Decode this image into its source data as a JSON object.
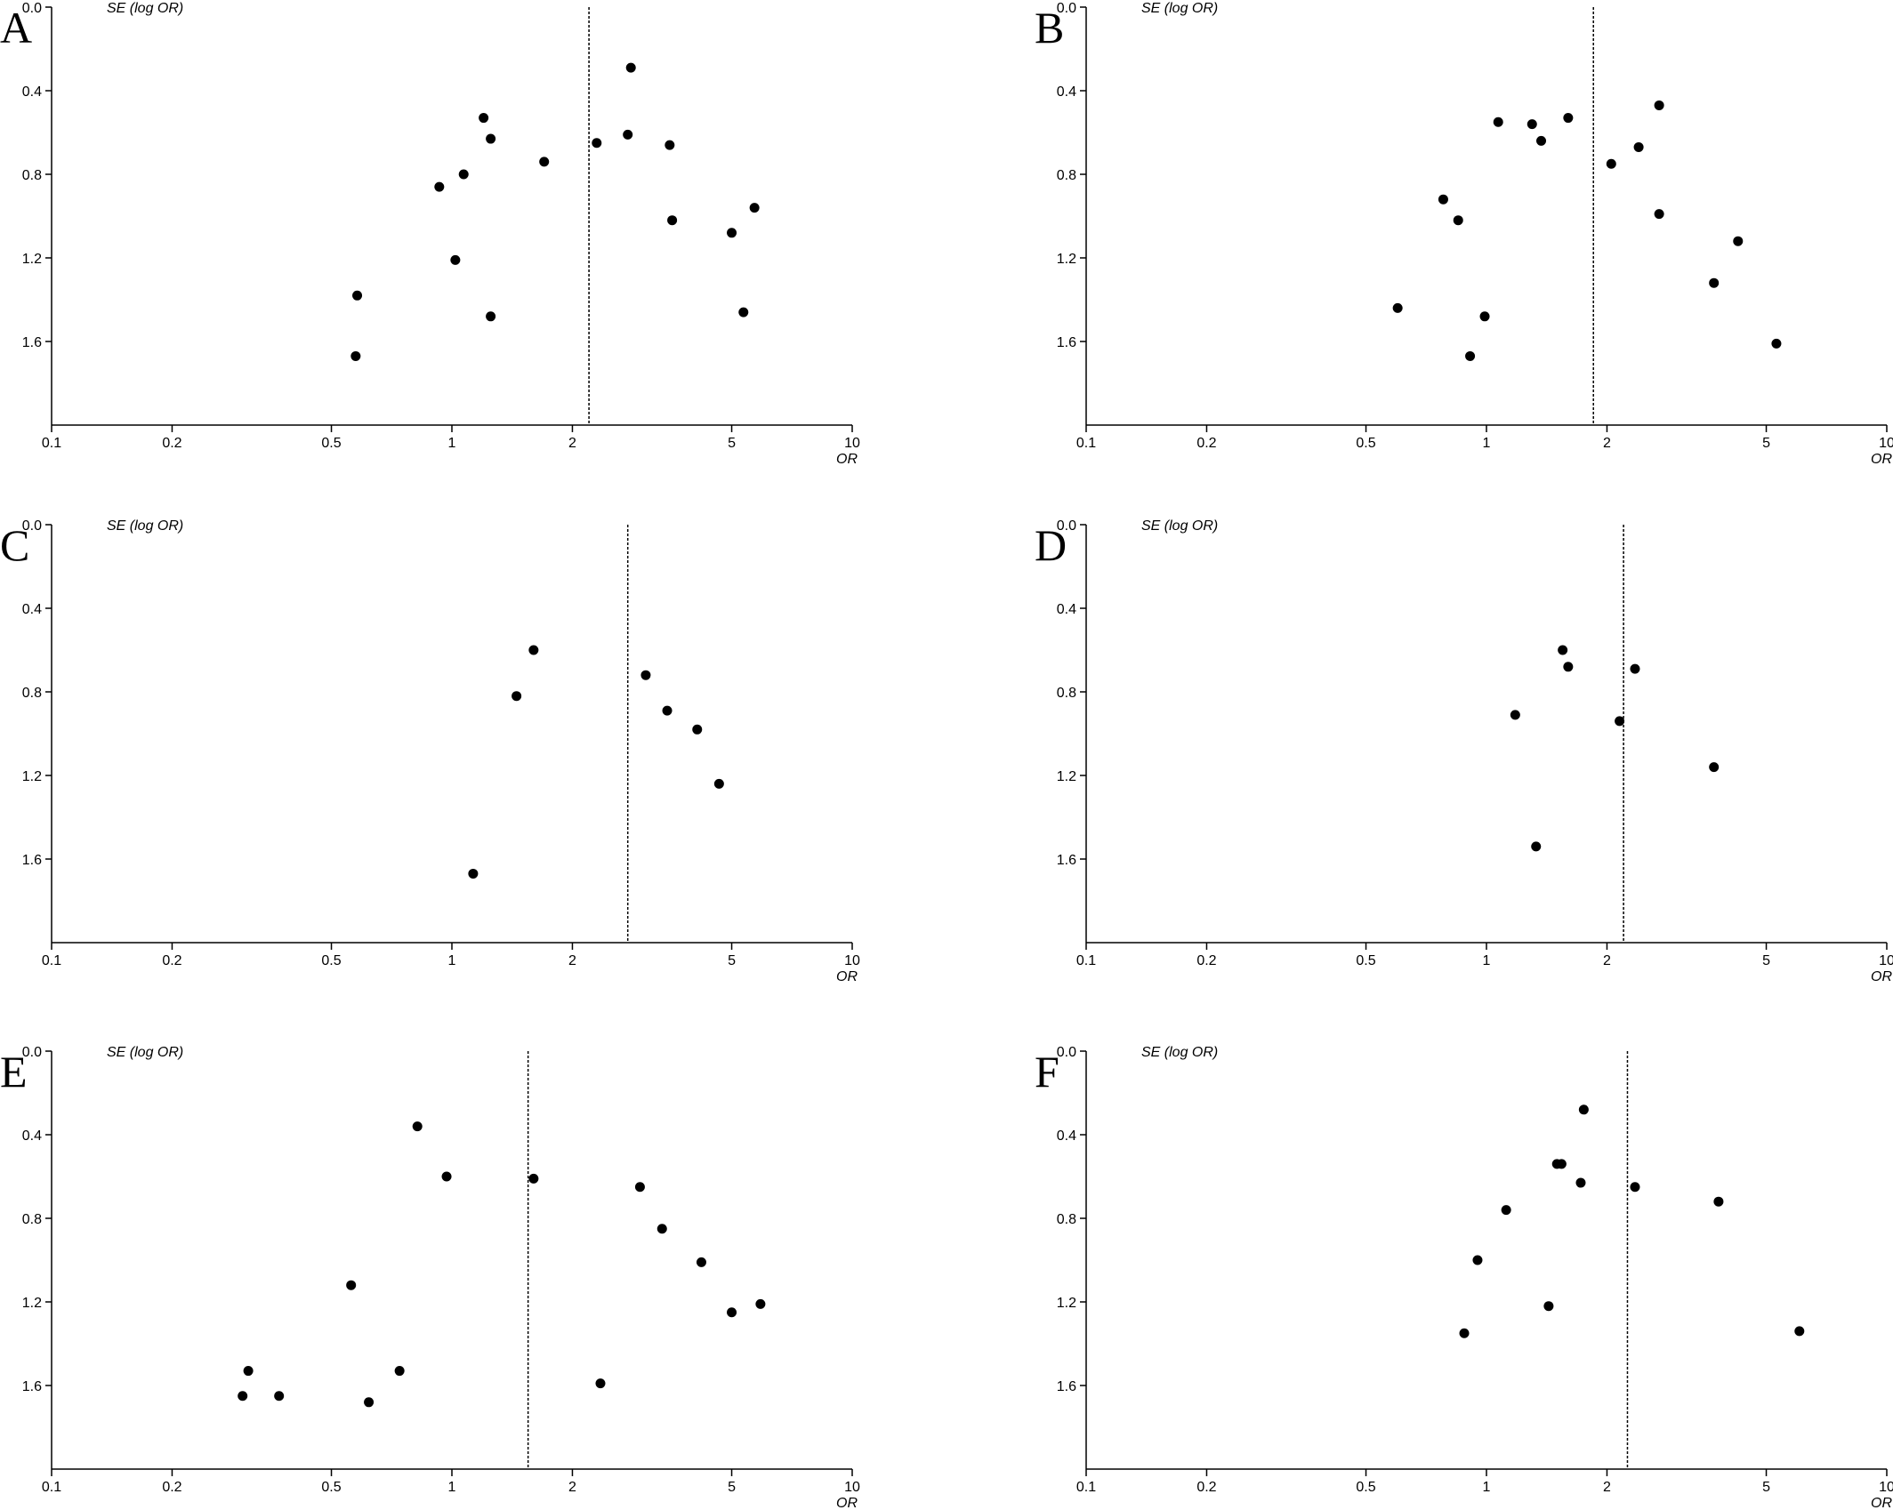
{
  "figure": {
    "panel_letters": [
      "A",
      "B",
      "C",
      "D",
      "E",
      "F"
    ],
    "marker_color": "#000000",
    "background_color": "#ffffff"
  },
  "chart_data": [
    {
      "panel": "A",
      "type": "scatter",
      "ylabel": "SE (log OR)",
      "xlabel": "OR",
      "x_scale": "log",
      "xlim": [
        0.1,
        10
      ],
      "x_ticks": [
        "0.1",
        "0.2",
        "0.5",
        "1",
        "2",
        "5",
        "10"
      ],
      "ylim": [
        0.0,
        2.0
      ],
      "y_inverted": true,
      "y_ticks": [
        "0.0",
        "0.4",
        "0.8",
        "1.2",
        "1.6"
      ],
      "pooled_or": 2.2,
      "points": [
        {
          "or": 2.8,
          "se": 0.29
        },
        {
          "or": 1.2,
          "se": 0.53
        },
        {
          "or": 1.25,
          "se": 0.63
        },
        {
          "or": 2.75,
          "se": 0.61
        },
        {
          "or": 2.3,
          "se": 0.65
        },
        {
          "or": 3.5,
          "se": 0.66
        },
        {
          "or": 1.7,
          "se": 0.74
        },
        {
          "or": 1.07,
          "se": 0.8
        },
        {
          "or": 0.93,
          "se": 0.86
        },
        {
          "or": 5.7,
          "se": 0.96
        },
        {
          "or": 3.55,
          "se": 1.02
        },
        {
          "or": 5.0,
          "se": 1.08
        },
        {
          "or": 1.02,
          "se": 1.21
        },
        {
          "or": 0.58,
          "se": 1.38
        },
        {
          "or": 5.35,
          "se": 1.46
        },
        {
          "or": 1.25,
          "se": 1.48
        },
        {
          "or": 0.575,
          "se": 1.67
        }
      ]
    },
    {
      "panel": "B",
      "type": "scatter",
      "ylabel": "SE (log OR)",
      "xlabel": "OR",
      "x_scale": "log",
      "xlim": [
        0.1,
        10
      ],
      "x_ticks": [
        "0.1",
        "0.2",
        "0.5",
        "1",
        "2",
        "5",
        "10"
      ],
      "ylim": [
        0.0,
        2.0
      ],
      "y_inverted": true,
      "y_ticks": [
        "0.0",
        "0.4",
        "0.8",
        "1.2",
        "1.6"
      ],
      "pooled_or": 1.85,
      "points": [
        {
          "or": 2.7,
          "se": 0.47
        },
        {
          "or": 1.6,
          "se": 0.53
        },
        {
          "or": 1.07,
          "se": 0.55
        },
        {
          "or": 1.3,
          "se": 0.56
        },
        {
          "or": 1.37,
          "se": 0.64
        },
        {
          "or": 2.4,
          "se": 0.67
        },
        {
          "or": 2.05,
          "se": 0.75
        },
        {
          "or": 0.78,
          "se": 0.92
        },
        {
          "or": 2.7,
          "se": 0.99
        },
        {
          "or": 0.85,
          "se": 1.02
        },
        {
          "or": 4.25,
          "se": 1.12
        },
        {
          "or": 3.7,
          "se": 1.32
        },
        {
          "or": 0.6,
          "se": 1.44
        },
        {
          "or": 0.99,
          "se": 1.48
        },
        {
          "or": 5.3,
          "se": 1.61
        },
        {
          "or": 0.91,
          "se": 1.67
        }
      ]
    },
    {
      "panel": "C",
      "type": "scatter",
      "ylabel": "SE (log OR)",
      "xlabel": "OR",
      "x_scale": "log",
      "xlim": [
        0.1,
        10
      ],
      "x_ticks": [
        "0.1",
        "0.2",
        "0.5",
        "1",
        "2",
        "5",
        "10"
      ],
      "ylim": [
        0.0,
        2.0
      ],
      "y_inverted": true,
      "y_ticks": [
        "0.0",
        "0.4",
        "0.8",
        "1.2",
        "1.6"
      ],
      "pooled_or": 2.75,
      "points": [
        {
          "or": 1.6,
          "se": 0.6
        },
        {
          "or": 3.05,
          "se": 0.72
        },
        {
          "or": 1.45,
          "se": 0.82
        },
        {
          "or": 3.45,
          "se": 0.89
        },
        {
          "or": 4.1,
          "se": 0.98
        },
        {
          "or": 4.65,
          "se": 1.24
        },
        {
          "or": 1.13,
          "se": 1.67
        }
      ]
    },
    {
      "panel": "D",
      "type": "scatter",
      "ylabel": "SE (log OR)",
      "xlabel": "OR",
      "x_scale": "log",
      "xlim": [
        0.1,
        10
      ],
      "x_ticks": [
        "0.1",
        "0.2",
        "0.5",
        "1",
        "2",
        "5",
        "10"
      ],
      "ylim": [
        0.0,
        2.0
      ],
      "y_inverted": true,
      "y_ticks": [
        "0.0",
        "0.4",
        "0.8",
        "1.2",
        "1.6"
      ],
      "pooled_or": 2.2,
      "points": [
        {
          "or": 1.55,
          "se": 0.6
        },
        {
          "or": 1.6,
          "se": 0.68
        },
        {
          "or": 2.35,
          "se": 0.69
        },
        {
          "or": 1.18,
          "se": 0.91
        },
        {
          "or": 2.15,
          "se": 0.94
        },
        {
          "or": 3.7,
          "se": 1.16
        },
        {
          "or": 1.33,
          "se": 1.54
        }
      ]
    },
    {
      "panel": "E",
      "type": "scatter",
      "ylabel": "SE (log OR)",
      "xlabel": "OR",
      "x_scale": "log",
      "xlim": [
        0.1,
        10
      ],
      "x_ticks": [
        "0.1",
        "0.2",
        "0.5",
        "1",
        "2",
        "5",
        "10"
      ],
      "ylim": [
        0.0,
        2.0
      ],
      "y_inverted": true,
      "y_ticks": [
        "0.0",
        "0.4",
        "0.8",
        "1.2",
        "1.6"
      ],
      "pooled_or": 1.55,
      "points": [
        {
          "or": 0.82,
          "se": 0.36
        },
        {
          "or": 0.97,
          "se": 0.6
        },
        {
          "or": 1.6,
          "se": 0.61
        },
        {
          "or": 2.95,
          "se": 0.65
        },
        {
          "or": 3.35,
          "se": 0.85
        },
        {
          "or": 4.2,
          "se": 1.01
        },
        {
          "or": 0.56,
          "se": 1.12
        },
        {
          "or": 5.9,
          "se": 1.21
        },
        {
          "or": 5.0,
          "se": 1.25
        },
        {
          "or": 0.31,
          "se": 1.53
        },
        {
          "or": 0.74,
          "se": 1.53
        },
        {
          "or": 2.35,
          "se": 1.59
        },
        {
          "or": 0.3,
          "se": 1.65
        },
        {
          "or": 0.37,
          "se": 1.65
        },
        {
          "or": 0.62,
          "se": 1.68
        }
      ]
    },
    {
      "panel": "F",
      "type": "scatter",
      "ylabel": "SE (log OR)",
      "xlabel": "OR",
      "x_scale": "log",
      "xlim": [
        0.1,
        10
      ],
      "x_ticks": [
        "0.1",
        "0.2",
        "0.5",
        "1",
        "2",
        "5",
        "10"
      ],
      "ylim": [
        0.0,
        2.0
      ],
      "y_inverted": true,
      "y_ticks": [
        "0.0",
        "0.4",
        "0.8",
        "1.2",
        "1.6"
      ],
      "pooled_or": 2.25,
      "points": [
        {
          "or": 1.75,
          "se": 0.28
        },
        {
          "or": 1.5,
          "se": 0.54
        },
        {
          "or": 1.54,
          "se": 0.54
        },
        {
          "or": 1.72,
          "se": 0.63
        },
        {
          "or": 2.35,
          "se": 0.65
        },
        {
          "or": 3.8,
          "se": 0.72
        },
        {
          "or": 1.12,
          "se": 0.76
        },
        {
          "or": 0.95,
          "se": 1.0
        },
        {
          "or": 1.43,
          "se": 1.22
        },
        {
          "or": 0.88,
          "se": 1.35
        },
        {
          "or": 6.05,
          "se": 1.34
        }
      ]
    }
  ]
}
